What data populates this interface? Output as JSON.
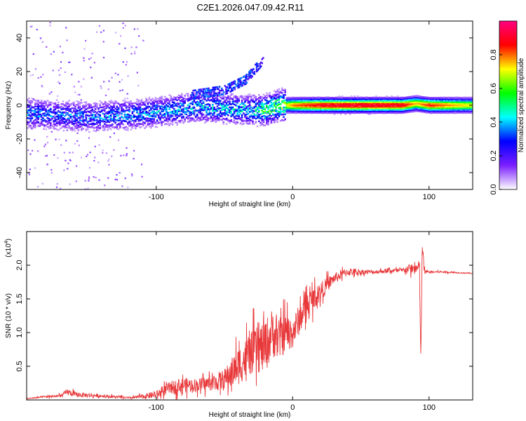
{
  "title": "C2E1.2026.047.09.42.R11",
  "chart_data": [
    {
      "type": "heatmap",
      "name": "spectrogram",
      "xlabel": "Height of straight line (km)",
      "ylabel": "Frequency (Hz)",
      "xlim": [
        -195,
        132
      ],
      "ylim": [
        -50,
        50
      ],
      "xticks": [
        -100,
        0,
        100
      ],
      "yticks": [
        -40,
        -20,
        0,
        20,
        40
      ],
      "xtick_labels": [
        "-100",
        "0",
        "100"
      ],
      "ytick_labels": [
        "-40",
        "-20",
        "0",
        "20",
        "40"
      ],
      "colorbar": {
        "label": "Normalized spectral amplitude",
        "range": [
          0,
          1
        ],
        "ticks": [
          0.0,
          0.2,
          0.4,
          0.6,
          0.8
        ],
        "tick_labels": [
          "0.0",
          "0.2",
          "0.4",
          "0.6",
          "0.8"
        ],
        "colors": [
          "#ffffff",
          "#7b1fff",
          "#0000ff",
          "#00ffff",
          "#00ff00",
          "#ffff00",
          "#ff0000",
          "#ff007f"
        ]
      },
      "ridge": [
        {
          "x": -190,
          "f": -5,
          "amp": 0.35
        },
        {
          "x": -170,
          "f": -6,
          "amp": 0.35
        },
        {
          "x": -150,
          "f": -7,
          "amp": 0.35
        },
        {
          "x": -130,
          "f": -6,
          "amp": 0.38
        },
        {
          "x": -110,
          "f": -5,
          "amp": 0.38
        },
        {
          "x": -90,
          "f": -3,
          "amp": 0.4
        },
        {
          "x": -70,
          "f": -1,
          "amp": 0.4
        },
        {
          "x": -50,
          "f": -2,
          "amp": 0.42
        },
        {
          "x": -30,
          "f": -3,
          "amp": 0.45
        },
        {
          "x": -20,
          "f": -3,
          "amp": 0.55
        },
        {
          "x": -10,
          "f": 0,
          "amp": 0.6
        },
        {
          "x": 0,
          "f": 0,
          "amp": 0.8
        },
        {
          "x": 20,
          "f": 0,
          "amp": 0.9
        },
        {
          "x": 40,
          "f": 0,
          "amp": 0.92
        },
        {
          "x": 60,
          "f": 0,
          "amp": 0.92
        },
        {
          "x": 80,
          "f": 0,
          "amp": 0.9
        },
        {
          "x": 90,
          "f": 1,
          "amp": 0.75
        },
        {
          "x": 100,
          "f": 0,
          "amp": 0.85
        },
        {
          "x": 132,
          "f": 0,
          "amp": 0.7
        }
      ],
      "branch": [
        {
          "x": -75,
          "f": 6
        },
        {
          "x": -50,
          "f": 9
        },
        {
          "x": -35,
          "f": 15
        },
        {
          "x": -22,
          "f": 27
        }
      ]
    },
    {
      "type": "line",
      "name": "snr",
      "xlabel": "Height of straight line (km)",
      "ylabel": "SNR (10 * v/v)",
      "y_scale_label": "(x10",
      "y_scale_exponent": "4",
      "xlim": [
        -195,
        132
      ],
      "ylim": [
        0,
        2.5
      ],
      "xticks": [
        -100,
        0,
        100
      ],
      "yticks": [
        0.5,
        1.0,
        1.5,
        2.0
      ],
      "xtick_labels": [
        "-100",
        "0",
        "100"
      ],
      "ytick_labels": [
        "0.5",
        "1.0",
        "1.5",
        "2.0"
      ],
      "color": "#e8383a",
      "series": {
        "x": [
          -195,
          -180,
          -170,
          -165,
          -160,
          -140,
          -120,
          -110,
          -100,
          -90,
          -80,
          -70,
          -60,
          -50,
          -40,
          -30,
          -20,
          -15,
          -10,
          -5,
          0,
          10,
          20,
          30,
          40,
          50,
          60,
          70,
          80,
          85,
          90,
          93,
          94,
          95,
          96,
          97,
          100,
          110,
          120,
          132
        ],
        "y": [
          0.02,
          0.05,
          0.06,
          0.12,
          0.08,
          0.06,
          0.03,
          0.05,
          0.08,
          0.18,
          0.22,
          0.22,
          0.25,
          0.3,
          0.5,
          0.7,
          0.8,
          1.0,
          0.9,
          1.0,
          1.0,
          1.4,
          1.6,
          1.8,
          1.9,
          1.9,
          1.9,
          1.92,
          1.92,
          1.95,
          1.95,
          1.95,
          0.55,
          2.35,
          2.0,
          1.9,
          1.9,
          1.9,
          1.89,
          1.88
        ],
        "noise": [
          0.01,
          0.02,
          0.03,
          0.06,
          0.05,
          0.03,
          0.02,
          0.04,
          0.07,
          0.12,
          0.14,
          0.12,
          0.14,
          0.2,
          0.35,
          0.4,
          0.5,
          0.45,
          0.4,
          0.35,
          0.3,
          0.25,
          0.18,
          0.1,
          0.08,
          0.05,
          0.04,
          0.04,
          0.04,
          0.08,
          0.12,
          0.15,
          0.05,
          0.2,
          0.15,
          0.05,
          0.02,
          0.02,
          0.01,
          0.01
        ]
      }
    }
  ]
}
